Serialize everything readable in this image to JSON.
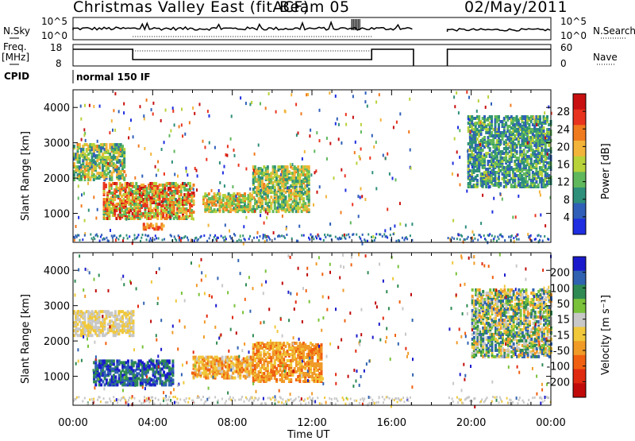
{
  "header": {
    "title": "Christmas Valley East (fitACF)",
    "beam": "Beam 05",
    "date": "02/May/2011"
  },
  "status_panel": {
    "nsky_label": "N.Sky",
    "nsky_ticks": [
      "10^5",
      "10^0"
    ],
    "nsearch_label": "N.Search",
    "nsearch_ticks": [
      "10^5",
      "10^0"
    ],
    "freq_label": "Freq.",
    "freq_unit": "[MHz]",
    "freq_ticks": [
      "18",
      "8"
    ],
    "nave_label": "Nave",
    "nave_ticks": [
      "60",
      "0"
    ],
    "cpid_label": "CPID",
    "cpid_value": "normal 150 IF"
  },
  "colors": {
    "power_scale": [
      "#1e2ee0",
      "#2f5fb8",
      "#2e8f7a",
      "#5fb85c",
      "#b8d23a",
      "#f2b43a",
      "#f07a1e",
      "#e8341e",
      "#c81010"
    ],
    "velocity_scale": [
      "#1a1acc",
      "#2f62b0",
      "#2e8a52",
      "#79c23a",
      "#c8c8c8",
      "#f0c83a",
      "#f09a28",
      "#f06010",
      "#e02a10",
      "#c00a0a"
    ]
  },
  "chart_data": [
    {
      "type": "heatmap",
      "panel": "power",
      "xlabel": "",
      "ylabel": "Slant Range [km]",
      "y_ticks": [
        "4000",
        "3000",
        "2000",
        "1000"
      ],
      "ylim": [
        180,
        4500
      ],
      "colorbar_label": "Power [dB]",
      "colorbar_ticks": [
        "28",
        "24",
        "20",
        "16",
        "12",
        "8",
        "4"
      ],
      "colorbar_range": [
        0,
        32
      ],
      "data_gaps_ut": [
        [
          17.1,
          18.8
        ]
      ],
      "echo_regions": [
        {
          "start_ut": 0.0,
          "end_ut": 2.6,
          "range_km": [
            2000,
            3000
          ],
          "power_db": [
            6,
            22
          ]
        },
        {
          "start_ut": 1.5,
          "end_ut": 6.0,
          "range_km": [
            900,
            1900
          ],
          "power_db": [
            10,
            30
          ]
        },
        {
          "start_ut": 3.5,
          "end_ut": 4.5,
          "range_km": [
            600,
            750
          ],
          "power_db": [
            18,
            28
          ]
        },
        {
          "start_ut": 6.5,
          "end_ut": 9.0,
          "range_km": [
            1100,
            1600
          ],
          "power_db": [
            10,
            24
          ]
        },
        {
          "start_ut": 9.0,
          "end_ut": 11.8,
          "range_km": [
            1100,
            2400
          ],
          "power_db": [
            8,
            22
          ]
        },
        {
          "start_ut": 19.8,
          "end_ut": 24.0,
          "range_km": [
            1800,
            3800
          ],
          "power_db": [
            4,
            16
          ]
        }
      ]
    },
    {
      "type": "heatmap",
      "panel": "velocity",
      "xlabel": "Time UT",
      "ylabel": "Slant Range [km]",
      "x_ticks": [
        "00:00",
        "04:00",
        "08:00",
        "12:00",
        "16:00",
        "20:00",
        "00:00"
      ],
      "y_ticks": [
        "4000",
        "3000",
        "2000",
        "1000"
      ],
      "ylim": [
        180,
        4500
      ],
      "colorbar_label": "Velocity [m s⁻¹]",
      "colorbar_ticks": [
        "200",
        "100",
        "50",
        "15",
        "-15",
        "-50",
        "-100",
        "-200"
      ],
      "colorbar_range": [
        -250,
        250
      ],
      "data_gaps_ut": [
        [
          17.1,
          18.8
        ]
      ],
      "echo_regions": [
        {
          "start_ut": 0.0,
          "end_ut": 3.0,
          "range_km": [
            2200,
            2900
          ],
          "velocity_ms": [
            -15,
            15
          ]
        },
        {
          "start_ut": 1.0,
          "end_ut": 5.0,
          "range_km": [
            800,
            1500
          ],
          "velocity_ms": [
            100,
            250
          ]
        },
        {
          "start_ut": 6.0,
          "end_ut": 9.0,
          "range_km": [
            1000,
            1600
          ],
          "velocity_ms": [
            -120,
            20
          ]
        },
        {
          "start_ut": 9.0,
          "end_ut": 12.5,
          "range_km": [
            900,
            2000
          ],
          "velocity_ms": [
            -120,
            -30
          ]
        },
        {
          "start_ut": 20.0,
          "end_ut": 24.0,
          "range_km": [
            1600,
            3500
          ],
          "velocity_ms": [
            -80,
            200
          ]
        }
      ]
    }
  ]
}
